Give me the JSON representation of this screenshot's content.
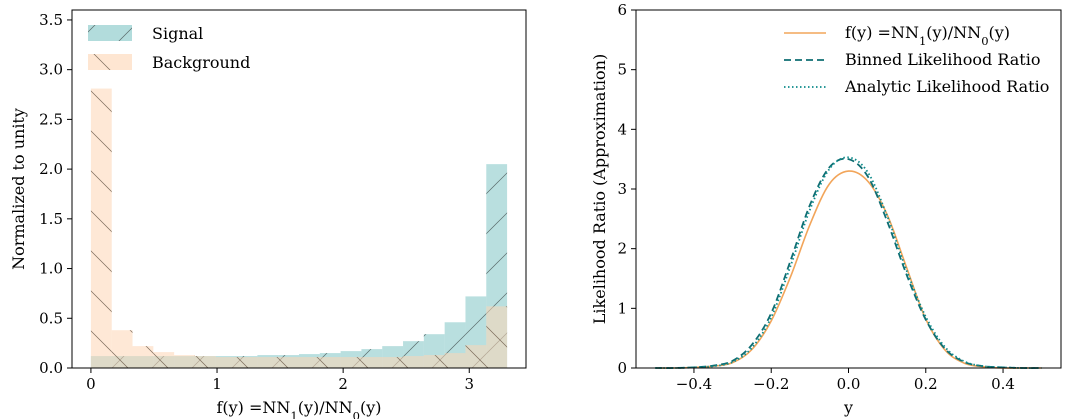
{
  "chart_data": [
    {
      "type": "bar",
      "subtype": "histogram",
      "xlabel": "f(y) =NN1(y)/NN0(y)",
      "ylabel": "Normalized to unity",
      "xlim": [
        -0.15,
        3.45
      ],
      "ylim": [
        0.0,
        3.6
      ],
      "xticks": [
        "0",
        "1",
        "2",
        "3"
      ],
      "xtick_values": [
        0,
        1,
        2,
        3
      ],
      "yticks": [
        "0.0",
        "0.5",
        "1.0",
        "1.5",
        "2.0",
        "2.5",
        "3.0",
        "3.5"
      ],
      "ytick_values": [
        0.0,
        0.5,
        1.0,
        1.5,
        2.0,
        2.5,
        3.0,
        3.5
      ],
      "bin_edges": [
        0.0,
        0.165,
        0.33,
        0.495,
        0.66,
        0.825,
        0.99,
        1.155,
        1.32,
        1.485,
        1.65,
        1.815,
        1.98,
        2.145,
        2.31,
        2.475,
        2.64,
        2.805,
        2.97,
        3.135,
        3.3
      ],
      "legend_position": "upper-left",
      "series": [
        {
          "name": "Signal",
          "color": "#7fc4c4",
          "hatch": "/",
          "values": [
            0.12,
            0.12,
            0.12,
            0.12,
            0.12,
            0.12,
            0.12,
            0.12,
            0.13,
            0.13,
            0.14,
            0.15,
            0.17,
            0.19,
            0.22,
            0.27,
            0.34,
            0.46,
            0.72,
            2.05
          ]
        },
        {
          "name": "Background",
          "color": "#fdd5b4",
          "hatch": "\\",
          "values": [
            2.81,
            0.38,
            0.22,
            0.16,
            0.13,
            0.12,
            0.11,
            0.11,
            0.11,
            0.11,
            0.11,
            0.11,
            0.11,
            0.11,
            0.11,
            0.12,
            0.13,
            0.15,
            0.23,
            0.62
          ]
        }
      ]
    },
    {
      "type": "line",
      "xlabel": "y",
      "ylabel": "Likelihood Ratio (Approximation)",
      "xlim": [
        -0.55,
        0.55
      ],
      "ylim": [
        0,
        6
      ],
      "xticks": [
        "−0.4",
        "−0.2",
        "0.0",
        "0.2",
        "0.4"
      ],
      "xtick_values": [
        -0.4,
        -0.2,
        0.0,
        0.2,
        0.4
      ],
      "yticks": [
        "0",
        "1",
        "2",
        "3",
        "4",
        "5",
        "6"
      ],
      "ytick_values": [
        0,
        1,
        2,
        3,
        4,
        5,
        6
      ],
      "legend_position": "upper-right",
      "x": [
        -0.5,
        -0.45,
        -0.4,
        -0.35,
        -0.3,
        -0.25,
        -0.2,
        -0.15,
        -0.1,
        -0.05,
        0.0,
        0.05,
        0.1,
        0.15,
        0.2,
        0.25,
        0.3,
        0.35,
        0.4,
        0.45,
        0.5
      ],
      "series": [
        {
          "name": "f(y) =NN1(y)/NN0(y)",
          "color": "#f2a55a",
          "style": "solid",
          "values": [
            0.0,
            0.0,
            0.01,
            0.03,
            0.09,
            0.31,
            0.79,
            1.53,
            2.4,
            3.08,
            3.3,
            3.13,
            2.57,
            1.69,
            0.82,
            0.3,
            0.08,
            0.02,
            0.0,
            0.0,
            0.0
          ]
        },
        {
          "name": "Binned Likelihood Ratio",
          "color": "#0f6e73",
          "style": "dashed",
          "values": [
            0.0,
            0.0,
            0.01,
            0.04,
            0.12,
            0.39,
            0.92,
            1.8,
            2.73,
            3.36,
            3.5,
            3.21,
            2.46,
            1.57,
            0.81,
            0.32,
            0.1,
            0.03,
            0.01,
            0.0,
            0.0
          ]
        },
        {
          "name": "Analytic Likelihood Ratio",
          "color": "#0d8a8a",
          "style": "dotted",
          "values": [
            0.0,
            0.0,
            0.01,
            0.03,
            0.1,
            0.34,
            0.85,
            1.71,
            2.65,
            3.33,
            3.53,
            3.28,
            2.55,
            1.64,
            0.86,
            0.35,
            0.11,
            0.03,
            0.01,
            0.0,
            0.0
          ]
        }
      ]
    }
  ]
}
